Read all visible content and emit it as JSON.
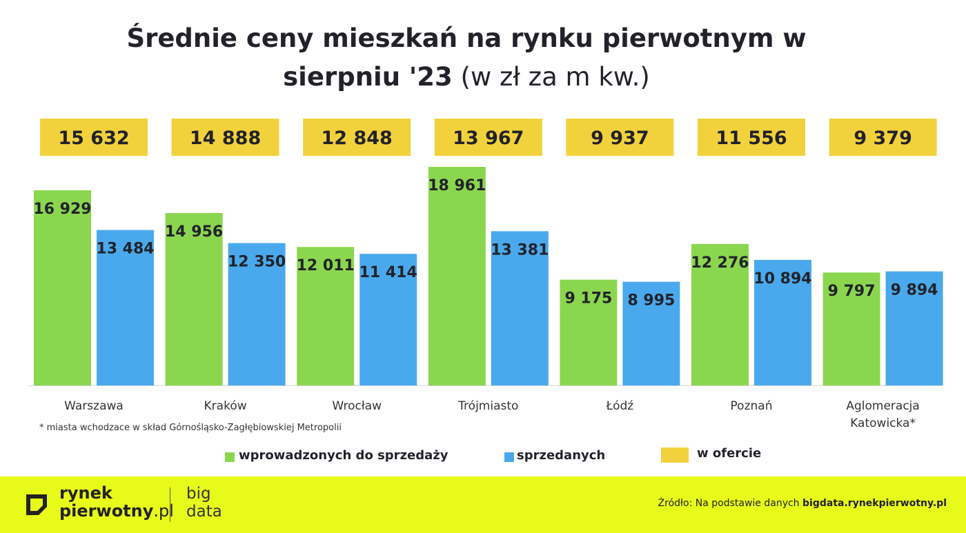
{
  "title": {
    "line1": "Średnie ceny mieszkań na rynku pierwotnym w",
    "line2_bold": "sierpniu '23",
    "line2_normal": "(w zł za m kw.)"
  },
  "chart_data": {
    "type": "bar",
    "title": "Średnie ceny mieszkań na rynku pierwotnym w sierpniu '23 (w zł za m kw.)",
    "categories": [
      "Warszawa",
      "Kraków",
      "Wrocław",
      "Trójmiasto",
      "Łódź",
      "Poznań",
      "Aglomeracja Katowicka*"
    ],
    "category_lines": [
      [
        "Warszawa"
      ],
      [
        "Kraków"
      ],
      [
        "Wrocław"
      ],
      [
        "Trójmiasto"
      ],
      [
        "Łódź"
      ],
      [
        "Poznań"
      ],
      [
        "Aglomeracja",
        "Katowicka*"
      ]
    ],
    "series": [
      {
        "name": "wprowadzonych do sprzedaży",
        "color": "#8bd64f",
        "values": [
          16929,
          14956,
          12011,
          18961,
          9175,
          12276,
          9797
        ],
        "labels": [
          "16 929",
          "14 956",
          "12 011",
          "18 961",
          "9 175",
          "12 276",
          "9 797"
        ]
      },
      {
        "name": "sprzedanych",
        "color": "#4aa9ec",
        "values": [
          13484,
          12350,
          11414,
          13381,
          8995,
          10894,
          9894
        ],
        "labels": [
          "13 484",
          "12 350",
          "11 414",
          "13 381",
          "8 995",
          "10 894",
          "9 894"
        ]
      },
      {
        "name": "w ofercie",
        "color": "#f2d23c",
        "values": [
          15632,
          14888,
          12848,
          13967,
          9937,
          11556,
          9379
        ],
        "labels": [
          "15 632",
          "14 888",
          "12 848",
          "13 967",
          "9 937",
          "11 556",
          "9 379"
        ]
      }
    ],
    "ylim": [
      0,
      20000
    ],
    "grid": false,
    "legend_position": "bottom"
  },
  "footnote": "* miasta wchodzace w skład Górnośląsko-Zagłębiowskiej Metropolii",
  "legend": [
    {
      "label": "wprowadzonych do sprzedaży",
      "color": "#8bd64f"
    },
    {
      "label": "sprzedanych",
      "color": "#4aa9ec"
    },
    {
      "label": "w ofercie",
      "color": "#f2d23c"
    }
  ],
  "footer": {
    "logo_line1": "rynek",
    "logo_line2_bold": "pierwotny",
    "logo_line2_normal": ".pl",
    "brand2_line1": "big",
    "brand2_line2": "data",
    "source_prefix": "Źródło: Na podstawie danych",
    "source_link": "bigdata.rynekpierwotny.pl",
    "background": "#e8fa19"
  }
}
